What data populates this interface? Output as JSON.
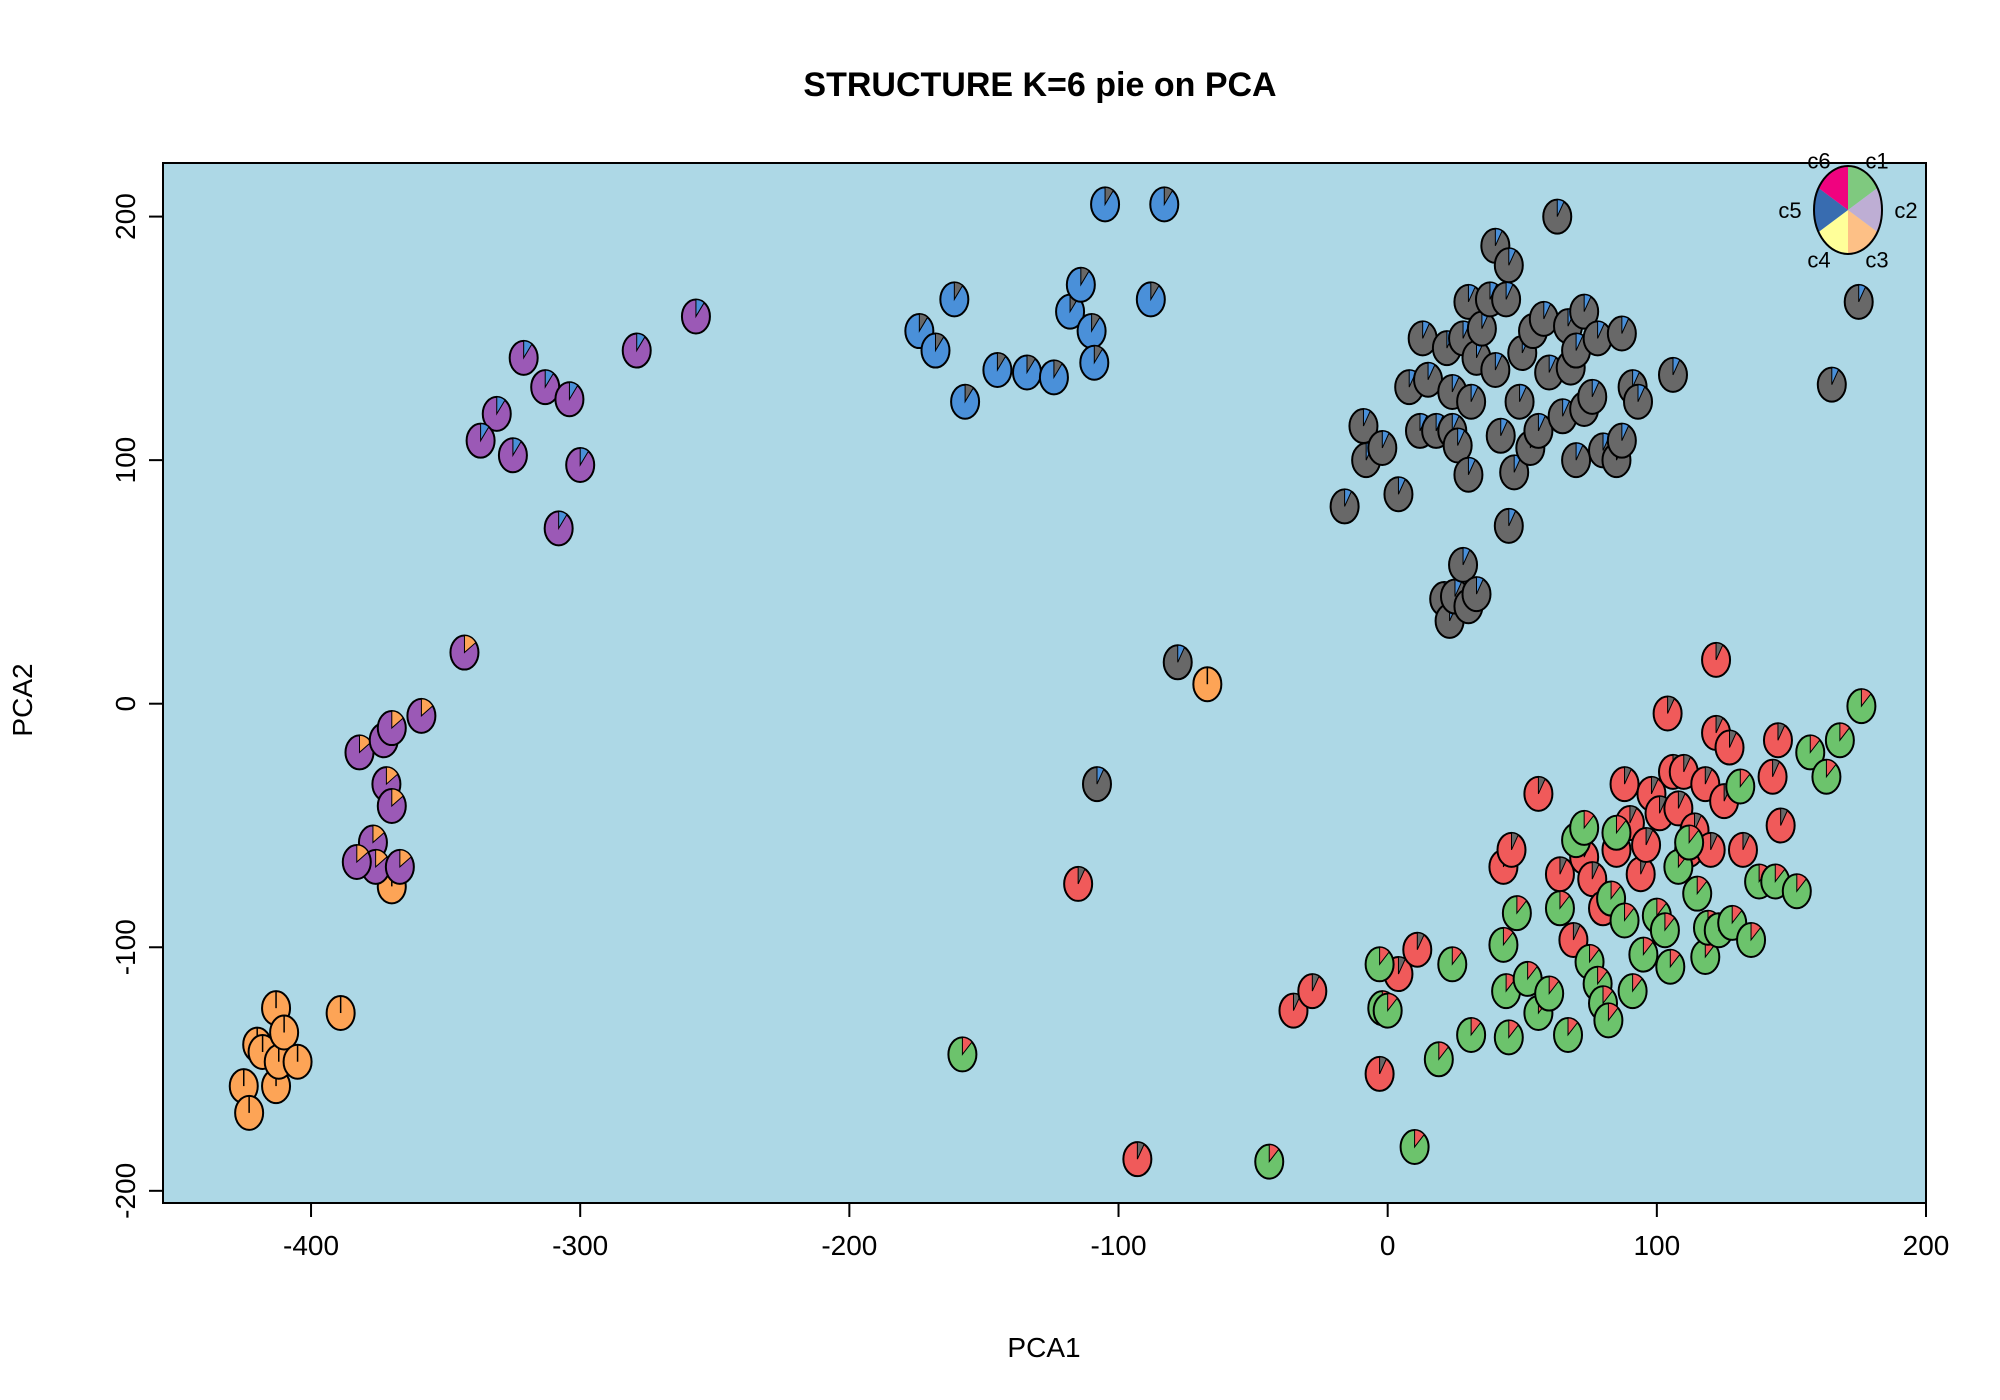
{
  "chart_data": {
    "type": "scatter",
    "title": "STRUCTURE K=6 pie on PCA",
    "xlabel": "PCA1",
    "ylabel": "PCA2",
    "xlim": [
      -455,
      200
    ],
    "ylim": [
      -205,
      222
    ],
    "x_ticks": [
      -400,
      -300,
      -200,
      -100,
      0,
      100,
      200
    ],
    "y_ticks": [
      -200,
      -100,
      0,
      100,
      200
    ],
    "grid": false,
    "plot_background": "#add8e6",
    "legend_position": "top-right",
    "clusters": [
      {
        "name": "c1",
        "color": "#7fc97f"
      },
      {
        "name": "c2",
        "color": "#beaed4"
      },
      {
        "name": "c3",
        "color": "#fdc086"
      },
      {
        "name": "c4",
        "color": "#ffff99"
      },
      {
        "name": "c5",
        "color": "#386cb0"
      },
      {
        "name": "c6",
        "color": "#f0027f"
      }
    ],
    "groups": [
      {
        "color": "#fda456",
        "minor": [],
        "points": [
          [
            -425,
            -157
          ],
          [
            -423,
            -168
          ],
          [
            -420,
            -140
          ],
          [
            -418,
            -143
          ],
          [
            -413,
            -125
          ],
          [
            -413,
            -157
          ],
          [
            -412,
            -147
          ],
          [
            -410,
            -135
          ],
          [
            -405,
            -147
          ],
          [
            -389,
            -127
          ],
          [
            -370,
            -75
          ]
        ]
      },
      {
        "color": "#9b59b6",
        "minor": [
          [
            "#fda456",
            0.15
          ]
        ],
        "points": [
          [
            -382,
            -20
          ],
          [
            -377,
            -57
          ],
          [
            -376,
            -67
          ],
          [
            -373,
            -15
          ],
          [
            -372,
            -33
          ],
          [
            -370,
            -10
          ],
          [
            -370,
            -42
          ],
          [
            -367,
            -67
          ],
          [
            -359,
            -5
          ],
          [
            -343,
            21
          ],
          [
            -383,
            -65
          ]
        ]
      },
      {
        "color": "#9b59b6",
        "minor": [
          [
            "#4a90d9",
            0.1
          ]
        ],
        "points": [
          [
            -321,
            142
          ],
          [
            -331,
            119
          ],
          [
            -337,
            108
          ],
          [
            -325,
            102
          ],
          [
            -313,
            130
          ],
          [
            -304,
            125
          ],
          [
            -300,
            98
          ],
          [
            -308,
            72
          ],
          [
            -279,
            145
          ],
          [
            -257,
            159
          ]
        ]
      },
      {
        "color": "#4a90d9",
        "minor": [
          [
            "#686868",
            0.1
          ]
        ],
        "points": [
          [
            -174,
            153
          ],
          [
            -168,
            145
          ],
          [
            -161,
            166
          ],
          [
            -157,
            124
          ],
          [
            -145,
            137
          ],
          [
            -134,
            136
          ],
          [
            -124,
            134
          ],
          [
            -118,
            161
          ],
          [
            -114,
            172
          ],
          [
            -110,
            153
          ],
          [
            -109,
            140
          ],
          [
            -88,
            166
          ],
          [
            -105,
            205
          ],
          [
            -83,
            205
          ]
        ]
      },
      {
        "color": "#686868",
        "minor": [
          [
            "#4a90d9",
            0.08
          ]
        ],
        "points": [
          [
            -16,
            81
          ],
          [
            -9,
            114
          ],
          [
            -8,
            100
          ],
          [
            -2,
            105
          ],
          [
            4,
            86
          ],
          [
            8,
            130
          ],
          [
            12,
            112
          ],
          [
            13,
            150
          ],
          [
            15,
            133
          ],
          [
            18,
            112
          ],
          [
            22,
            146
          ],
          [
            24,
            112
          ],
          [
            24,
            128
          ],
          [
            26,
            106
          ],
          [
            28,
            150
          ],
          [
            30,
            94
          ],
          [
            30,
            165
          ],
          [
            31,
            124
          ],
          [
            33,
            142
          ],
          [
            35,
            154
          ],
          [
            38,
            166
          ],
          [
            40,
            137
          ],
          [
            40,
            188
          ],
          [
            42,
            110
          ],
          [
            44,
            166
          ],
          [
            45,
            180
          ],
          [
            47,
            95
          ],
          [
            49,
            124
          ],
          [
            50,
            144
          ],
          [
            53,
            105
          ],
          [
            54,
            153
          ],
          [
            56,
            112
          ],
          [
            58,
            158
          ],
          [
            60,
            136
          ],
          [
            63,
            200
          ],
          [
            65,
            118
          ],
          [
            67,
            155
          ],
          [
            68,
            138
          ],
          [
            70,
            100
          ],
          [
            70,
            145
          ],
          [
            73,
            121
          ],
          [
            73,
            161
          ],
          [
            76,
            126
          ],
          [
            78,
            150
          ],
          [
            80,
            104
          ],
          [
            85,
            100
          ],
          [
            87,
            152
          ],
          [
            87,
            108
          ],
          [
            91,
            130
          ],
          [
            93,
            124
          ],
          [
            106,
            135
          ],
          [
            165,
            131
          ],
          [
            175,
            165
          ],
          [
            21,
            43
          ],
          [
            23,
            34
          ],
          [
            25,
            44
          ],
          [
            28,
            57
          ],
          [
            30,
            40
          ],
          [
            33,
            45
          ],
          [
            45,
            73
          ],
          [
            -78,
            17
          ],
          [
            -108,
            -33
          ]
        ]
      },
      {
        "color": "#f05a5a",
        "minor": [
          [
            "#686868",
            0.08
          ]
        ],
        "points": [
          [
            -115,
            -74
          ],
          [
            -93,
            -187
          ],
          [
            -35,
            -126
          ],
          [
            -28,
            -118
          ],
          [
            -3,
            -152
          ],
          [
            4,
            -111
          ],
          [
            11,
            -101
          ],
          [
            43,
            -67
          ],
          [
            46,
            -60
          ],
          [
            56,
            -37
          ],
          [
            64,
            -70
          ],
          [
            69,
            -97
          ],
          [
            73,
            -63
          ],
          [
            76,
            -72
          ],
          [
            80,
            -84
          ],
          [
            85,
            -60
          ],
          [
            88,
            -33
          ],
          [
            90,
            -49
          ],
          [
            94,
            -70
          ],
          [
            96,
            -58
          ],
          [
            98,
            -37
          ],
          [
            101,
            -45
          ],
          [
            104,
            -4
          ],
          [
            106,
            -28
          ],
          [
            108,
            -43
          ],
          [
            110,
            -28
          ],
          [
            112,
            -60
          ],
          [
            114,
            -52
          ],
          [
            118,
            -33
          ],
          [
            120,
            -60
          ],
          [
            122,
            -12
          ],
          [
            125,
            -40
          ],
          [
            127,
            -18
          ],
          [
            132,
            -60
          ],
          [
            143,
            -30
          ],
          [
            145,
            -15
          ],
          [
            146,
            -50
          ],
          [
            122,
            18
          ]
        ]
      },
      {
        "color": "#6cc36c",
        "minor": [
          [
            "#f05a5a",
            0.12
          ]
        ],
        "points": [
          [
            -158,
            -144
          ],
          [
            -44,
            -188
          ],
          [
            -2,
            -125
          ],
          [
            -3,
            -107
          ],
          [
            0,
            -126
          ],
          [
            10,
            -182
          ],
          [
            19,
            -146
          ],
          [
            24,
            -107
          ],
          [
            31,
            -136
          ],
          [
            43,
            -99
          ],
          [
            44,
            -118
          ],
          [
            45,
            -137
          ],
          [
            48,
            -86
          ],
          [
            52,
            -113
          ],
          [
            56,
            -127
          ],
          [
            60,
            -119
          ],
          [
            64,
            -84
          ],
          [
            67,
            -136
          ],
          [
            70,
            -56
          ],
          [
            73,
            -51
          ],
          [
            75,
            -106
          ],
          [
            78,
            -115
          ],
          [
            80,
            -123
          ],
          [
            82,
            -130
          ],
          [
            83,
            -80
          ],
          [
            85,
            -53
          ],
          [
            88,
            -89
          ],
          [
            91,
            -118
          ],
          [
            95,
            -103
          ],
          [
            100,
            -87
          ],
          [
            103,
            -93
          ],
          [
            105,
            -108
          ],
          [
            108,
            -67
          ],
          [
            112,
            -57
          ],
          [
            115,
            -78
          ],
          [
            118,
            -104
          ],
          [
            119,
            -92
          ],
          [
            123,
            -93
          ],
          [
            128,
            -90
          ],
          [
            131,
            -34
          ],
          [
            135,
            -97
          ],
          [
            138,
            -73
          ],
          [
            144,
            -73
          ],
          [
            152,
            -77
          ],
          [
            157,
            -20
          ],
          [
            163,
            -30
          ],
          [
            168,
            -15
          ],
          [
            176,
            -1
          ]
        ]
      },
      {
        "color": "#fda456",
        "minor": [],
        "points": [
          [
            -67,
            8
          ]
        ]
      }
    ],
    "legend": {
      "labels": [
        "c1",
        "c2",
        "c3",
        "c4",
        "c5",
        "c6"
      ]
    }
  }
}
